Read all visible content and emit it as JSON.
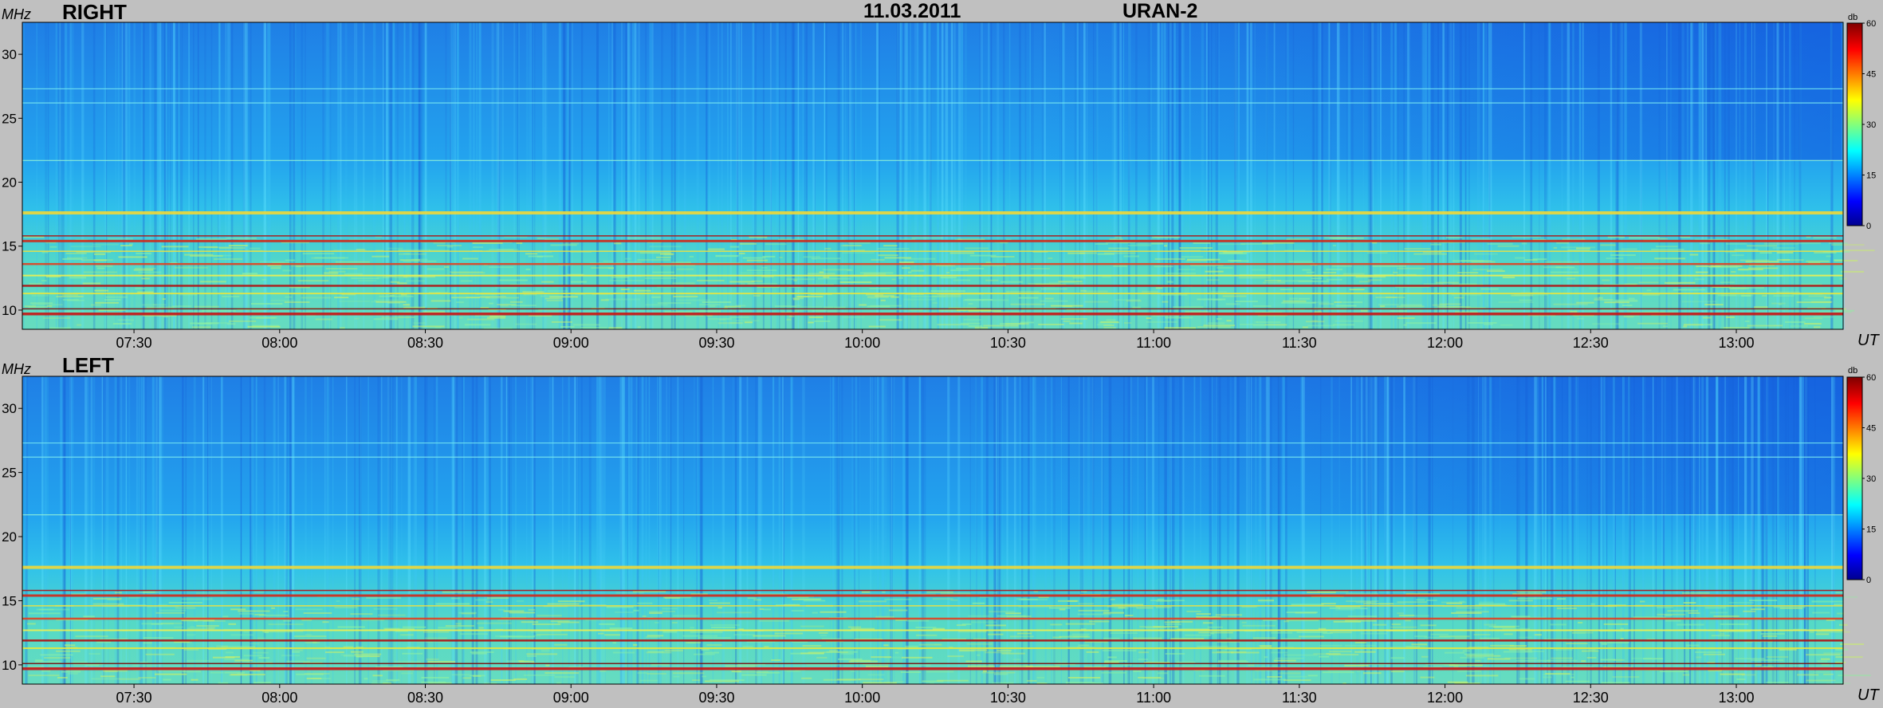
{
  "header": {
    "date": "11.03.2011",
    "instrument": "URAN-2"
  },
  "colors": {
    "background": "#c0c0c0",
    "spectrogram_base": "#1e8fe8"
  },
  "chart_data": [
    {
      "type": "heatmap",
      "title": "RIGHT",
      "ylabel": "MHz",
      "xlabel": "UT",
      "ylim": [
        8.5,
        32.5
      ],
      "xlim": [
        "07:07",
        "13:22"
      ],
      "yticks": [
        "10",
        "15",
        "20",
        "25",
        "30"
      ],
      "xticks": [
        "07:30",
        "08:00",
        "08:30",
        "09:00",
        "09:30",
        "10:00",
        "10:30",
        "11:00",
        "11:30",
        "12:00",
        "12:30",
        "13:00"
      ],
      "colorbar": {
        "label": "db",
        "min": 0,
        "max": 60,
        "ticks": [
          "0",
          "15",
          "30",
          "45",
          "60"
        ],
        "colormap": "jet"
      },
      "grid": false
    },
    {
      "type": "heatmap",
      "title": "LEFT",
      "ylabel": "MHz",
      "xlabel": "UT",
      "ylim": [
        8.5,
        32.5
      ],
      "xlim": [
        "07:07",
        "13:22"
      ],
      "yticks": [
        "10",
        "15",
        "20",
        "25",
        "30"
      ],
      "xticks": [
        "07:30",
        "08:00",
        "08:30",
        "09:00",
        "09:30",
        "10:00",
        "10:30",
        "11:00",
        "11:30",
        "12:00",
        "12:30",
        "13:00"
      ],
      "colorbar": {
        "label": "db",
        "min": 0,
        "max": 60,
        "ticks": [
          "0",
          "15",
          "30",
          "45",
          "60"
        ],
        "colormap": "jet"
      },
      "grid": false
    }
  ]
}
